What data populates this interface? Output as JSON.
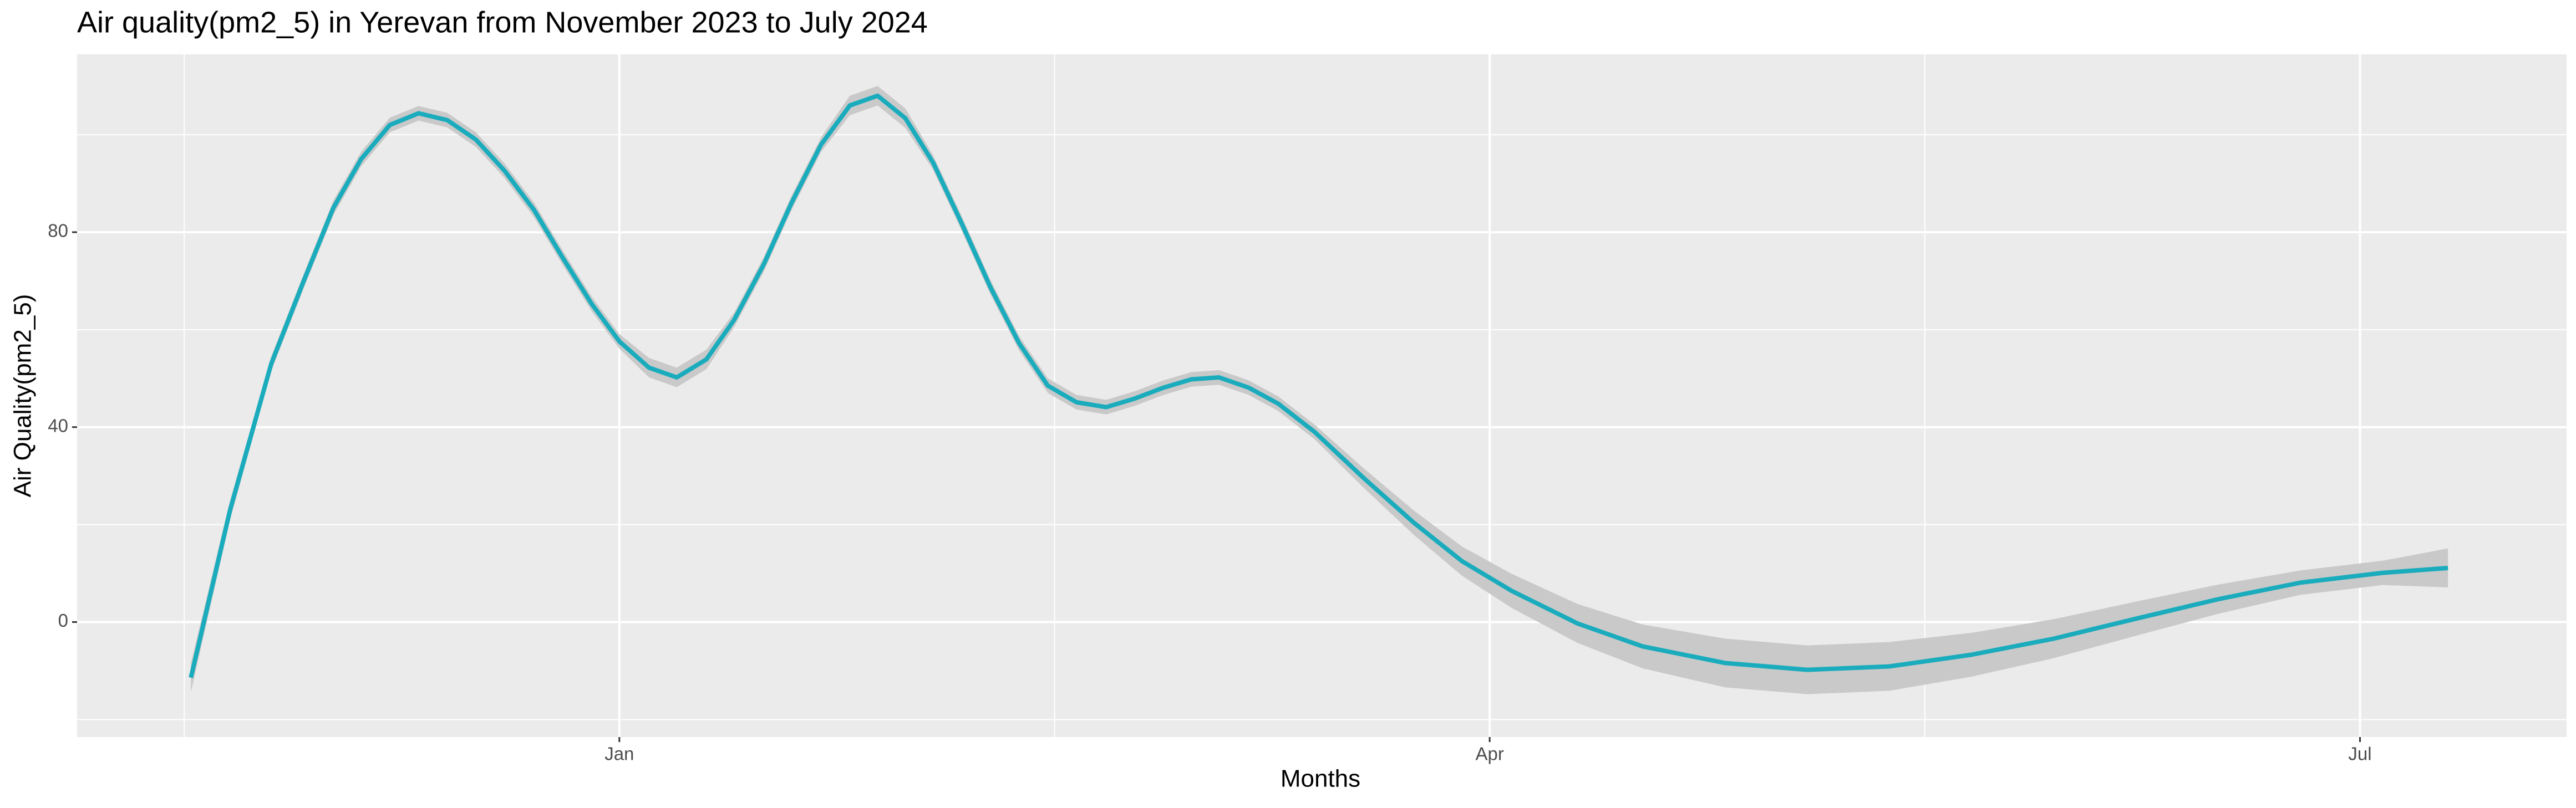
{
  "chart_data": {
    "type": "line",
    "title": "Air quality(pm2_5) in Yerevan from November 2023 to July 2024",
    "xlabel": "Months",
    "ylabel": "Air Quality(pm2_5)",
    "x": [
      -44.8,
      -40.7,
      -36.4,
      -33,
      -29.9,
      -27,
      -24,
      -21,
      -18,
      -15,
      -12,
      -8.9,
      -6,
      -2.9,
      0,
      3.1,
      6,
      9.1,
      12,
      15.1,
      18,
      21.1,
      24.1,
      27,
      29.9,
      32.8,
      35.7,
      38.8,
      41.8,
      44.8,
      47.8,
      50.9,
      53.8,
      56.9,
      59.8,
      62.7,
      65.8,
      68.9,
      72.7,
      77.8,
      83,
      88.1,
      93.3,
      100.2,
      107,
      115.6,
      124.2,
      132.8,
      141.4,
      150,
      158.6,
      167.2,
      175.8,
      184.4,
      191.2
    ],
    "series": [
      {
        "color": "#1aacbd",
        "values": [
          -11.4,
          23,
          53,
          70,
          85,
          95,
          102,
          104.4,
          103,
          99,
          92.6,
          84.5,
          75,
          65.3,
          57.6,
          52.2,
          50.2,
          53.9,
          62,
          73.4,
          86,
          98,
          106,
          108,
          103.4,
          94.3,
          82.2,
          68.7,
          57.2,
          48.5,
          45.1,
          44.1,
          45.8,
          48.1,
          49.8,
          50.2,
          48.1,
          44.8,
          39,
          29.6,
          20.5,
          12.5,
          6.4,
          -0.3,
          -5,
          -8.4,
          -9.8,
          -9.1,
          -6.7,
          -3.4,
          0.7,
          4.7,
          8.1,
          10.1,
          11.1
        ],
        "lower": [
          -14.4,
          21,
          51.5,
          68.5,
          83.5,
          93.5,
          100.5,
          102.9,
          101.5,
          97.5,
          91.1,
          83,
          73.5,
          63.8,
          56.1,
          50.2,
          48.2,
          51.9,
          60.5,
          71.9,
          84.5,
          96.5,
          104,
          106,
          101.4,
          92.8,
          80.7,
          67.2,
          55.7,
          47,
          43.6,
          42.6,
          44.3,
          46.6,
          48.3,
          48.7,
          46.6,
          43.3,
          37.5,
          27.6,
          18,
          9.5,
          2.9,
          -4.3,
          -9.5,
          -13.4,
          -14.8,
          -14.1,
          -11.2,
          -7.4,
          -2.8,
          1.7,
          5.6,
          7.6,
          7.1
        ],
        "upper": [
          -8.4,
          25,
          54.5,
          71.5,
          86.5,
          96.5,
          103.5,
          105.9,
          104.5,
          100.5,
          94.1,
          86,
          76.5,
          66.8,
          59.1,
          54.2,
          52.2,
          55.9,
          63.5,
          74.9,
          87.5,
          99.5,
          108,
          110,
          105.4,
          95.8,
          83.7,
          70.2,
          58.7,
          50,
          46.6,
          45.6,
          47.3,
          49.6,
          51.3,
          51.7,
          49.6,
          46.3,
          40.5,
          31.6,
          23,
          15.5,
          9.9,
          3.7,
          -0.5,
          -3.4,
          -4.8,
          -4.1,
          -2.2,
          0.6,
          4.2,
          7.7,
          10.6,
          12.6,
          15.1
        ],
        "band_color": "#c9c9c9"
      }
    ],
    "xlim": [
      -56.7,
      203.6
    ],
    "xticks": [
      {
        "value": 0,
        "label": "Jan"
      },
      {
        "value": 91,
        "label": "Apr"
      },
      {
        "value": 182,
        "label": "Jul"
      }
    ],
    "ylim": [
      -23.6,
      116.5
    ],
    "yticks": [
      0,
      40,
      80
    ],
    "grid": true
  }
}
